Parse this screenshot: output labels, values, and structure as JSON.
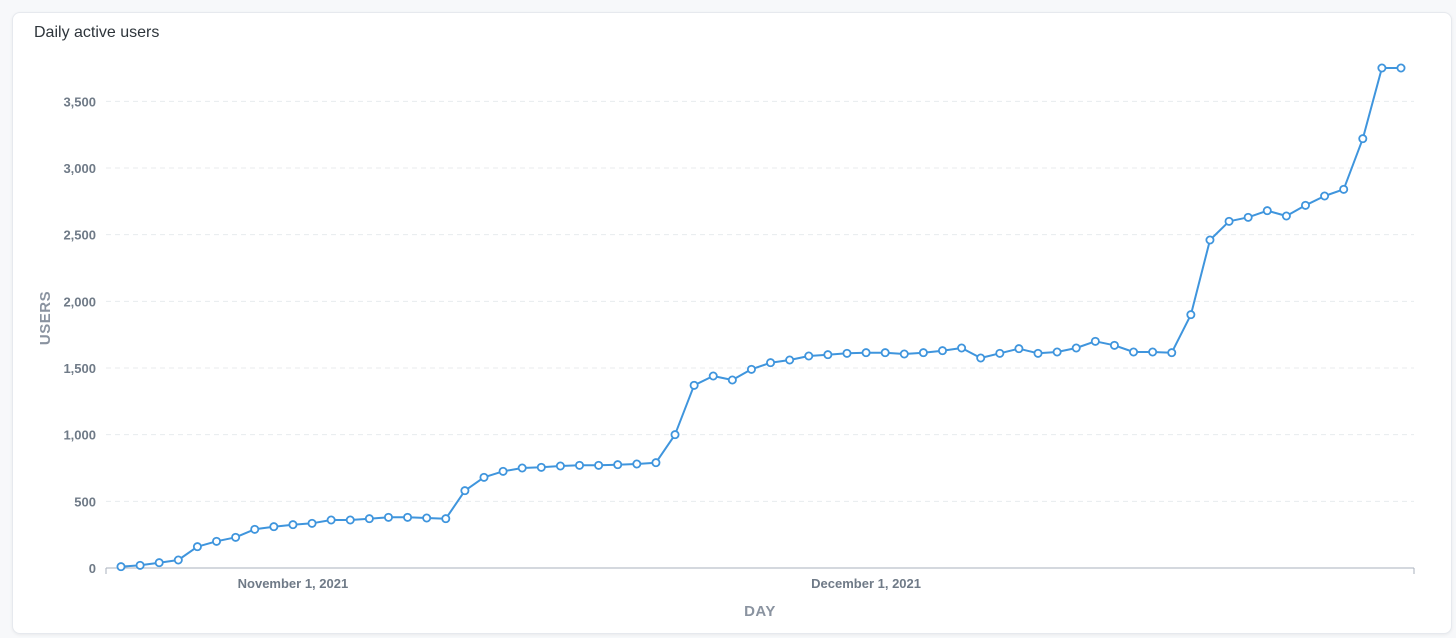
{
  "card": {
    "title": "Daily active users"
  },
  "colors": {
    "line": "#3f95dd",
    "point_fill": "#ffffff",
    "grid": "#e8ebee",
    "axis": "#aab2bd"
  },
  "chart_data": {
    "type": "line",
    "title": "Daily active users",
    "xlabel": "DAY",
    "ylabel": "USERS",
    "x_start": "2021-10-23",
    "x_step_days": 1,
    "xticks": [
      {
        "date": "2021-11-01",
        "label": "November 1, 2021"
      },
      {
        "date": "2021-12-01",
        "label": "December 1, 2021"
      }
    ],
    "ylim": [
      0,
      3750
    ],
    "yticks": [
      0,
      500,
      1000,
      1500,
      2000,
      2500,
      3000,
      3500
    ],
    "ytick_labels": [
      "0",
      "500",
      "1,000",
      "1,500",
      "2,000",
      "2,500",
      "3,000",
      "3,500"
    ],
    "grid": true,
    "series": [
      {
        "values": [
          10,
          20,
          40,
          60,
          160,
          200,
          230,
          290,
          310,
          325,
          335,
          360,
          360,
          370,
          380,
          380,
          375,
          370,
          580,
          680,
          725,
          750,
          755,
          765,
          770,
          770,
          775,
          780,
          790,
          1000,
          1370,
          1440,
          1410,
          1490,
          1540,
          1560,
          1590,
          1600,
          1610,
          1615,
          1615,
          1605,
          1615,
          1630,
          1650,
          1575,
          1610,
          1645,
          1610,
          1620,
          1650,
          1700,
          1670,
          1620,
          1620,
          1615,
          1900,
          2460,
          2600,
          2630,
          2680,
          2640,
          2720,
          2790,
          2840,
          3220,
          3750,
          3750
        ]
      }
    ]
  }
}
